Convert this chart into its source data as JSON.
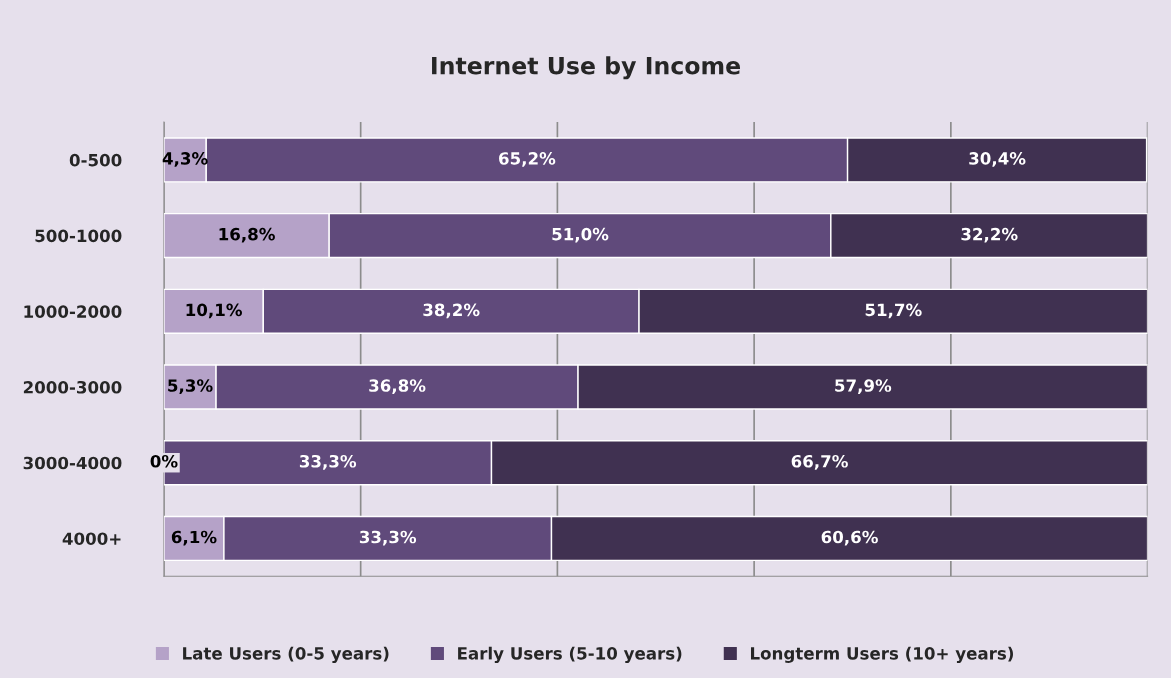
{
  "chart_data": {
    "type": "bar",
    "orientation": "horizontal",
    "stacked": true,
    "title": "Internet Use by Income",
    "categories": [
      "0-500",
      "500-1000",
      "1000-2000",
      "2000-3000",
      "3000-4000",
      "4000+"
    ],
    "series": [
      {
        "name": "Late Users (0-5 years)",
        "color": "#b5a2c8",
        "values": [
          4.3,
          16.8,
          10.1,
          5.3,
          0,
          6.1
        ],
        "value_labels": [
          "4,3%",
          "16,8%",
          "10,1%",
          "5,3%",
          "0%",
          "6,1%"
        ]
      },
      {
        "name": "Early Users (5-10 years)",
        "color": "#604a7b",
        "values": [
          65.2,
          51.0,
          38.2,
          36.8,
          33.3,
          33.3
        ],
        "value_labels": [
          "65,2%",
          "51,0%",
          "38,2%",
          "36,8%",
          "33,3%",
          "33,3%"
        ]
      },
      {
        "name": "Longterm Users (10+ years)",
        "color": "#403151",
        "values": [
          30.4,
          32.2,
          51.7,
          57.9,
          66.7,
          60.6
        ],
        "value_labels": [
          "30,4%",
          "32,2%",
          "51,7%",
          "57,9%",
          "66,7%",
          "60,6%"
        ]
      }
    ],
    "xlim": [
      0,
      100
    ],
    "xticks": [
      {
        "value": 0,
        "label": null
      },
      {
        "value": 20,
        "label": null
      },
      {
        "value": 40,
        "label": null
      },
      {
        "value": 60,
        "label": null
      },
      {
        "value": 80,
        "label": null
      },
      {
        "value": 100,
        "label": null
      }
    ],
    "tick_labels": "y",
    "grid": "x",
    "legend": "bottom"
  }
}
